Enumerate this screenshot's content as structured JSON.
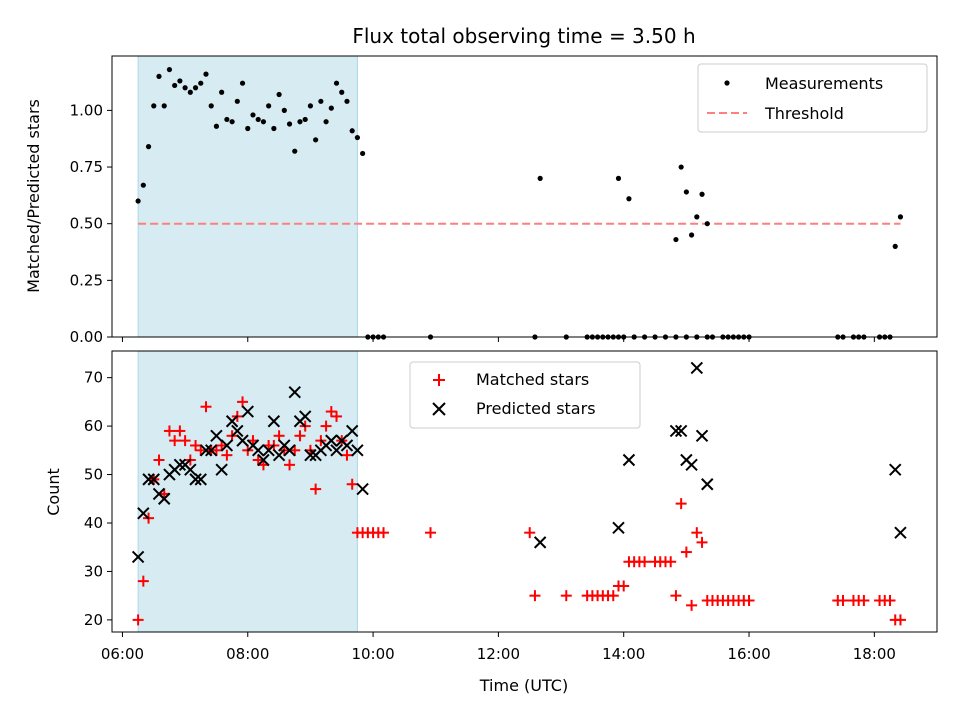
{
  "chart_data": [
    {
      "type": "scatter",
      "title": "Flux total observing time = 3.50 h",
      "xlabel": "",
      "ylabel": "Matched/Predicted stars",
      "xlim": [
        "05:50",
        "19:00"
      ],
      "ylim": [
        0,
        1.24
      ],
      "yticks": [
        "0.00",
        "0.25",
        "0.50",
        "0.75",
        "1.00"
      ],
      "shaded_interval": [
        "06:15",
        "09:45"
      ],
      "threshold": 0.5,
      "legend": {
        "placement": "top-right",
        "entries": [
          "Measurements",
          "Threshold"
        ]
      },
      "series": [
        {
          "name": "Measurements",
          "color": "#000000",
          "points": [
            [
              "06:15",
              0.6
            ],
            [
              "06:20",
              0.67
            ],
            [
              "06:25",
              0.84
            ],
            [
              "06:30",
              1.02
            ],
            [
              "06:35",
              1.15
            ],
            [
              "06:40",
              1.02
            ],
            [
              "06:45",
              1.18
            ],
            [
              "06:50",
              1.11
            ],
            [
              "06:55",
              1.13
            ],
            [
              "07:00",
              1.1
            ],
            [
              "07:05",
              1.08
            ],
            [
              "07:10",
              1.1
            ],
            [
              "07:15",
              1.12
            ],
            [
              "07:20",
              1.16
            ],
            [
              "07:25",
              1.02
            ],
            [
              "07:30",
              0.93
            ],
            [
              "07:35",
              1.08
            ],
            [
              "07:40",
              0.96
            ],
            [
              "07:45",
              0.95
            ],
            [
              "07:50",
              1.04
            ],
            [
              "07:55",
              1.12
            ],
            [
              "08:00",
              0.92
            ],
            [
              "08:05",
              0.98
            ],
            [
              "08:10",
              0.96
            ],
            [
              "08:15",
              0.95
            ],
            [
              "08:20",
              1.02
            ],
            [
              "08:25",
              0.92
            ],
            [
              "08:30",
              1.07
            ],
            [
              "08:35",
              1.0
            ],
            [
              "08:40",
              0.94
            ],
            [
              "08:45",
              0.82
            ],
            [
              "08:50",
              0.95
            ],
            [
              "08:55",
              0.96
            ],
            [
              "09:00",
              1.02
            ],
            [
              "09:05",
              0.87
            ],
            [
              "09:10",
              1.04
            ],
            [
              "09:15",
              0.95
            ],
            [
              "09:20",
              1.01
            ],
            [
              "09:25",
              1.12
            ],
            [
              "09:30",
              1.08
            ],
            [
              "09:35",
              1.04
            ],
            [
              "09:40",
              0.91
            ],
            [
              "09:45",
              0.88
            ],
            [
              "09:50",
              0.81
            ],
            [
              "09:55",
              0
            ],
            [
              "10:00",
              0
            ],
            [
              "10:05",
              0
            ],
            [
              "10:10",
              0
            ],
            [
              "10:55",
              0
            ],
            [
              "12:35",
              0
            ],
            [
              "13:05",
              0
            ],
            [
              "13:25",
              0
            ],
            [
              "13:30",
              0
            ],
            [
              "13:35",
              0
            ],
            [
              "13:40",
              0
            ],
            [
              "13:45",
              0
            ],
            [
              "13:50",
              0
            ],
            [
              "13:55",
              0
            ],
            [
              "14:00",
              0
            ],
            [
              "14:10",
              0
            ],
            [
              "14:20",
              0
            ],
            [
              "14:30",
              0
            ],
            [
              "14:40",
              0
            ],
            [
              "14:50",
              0
            ],
            [
              "15:00",
              0
            ],
            [
              "15:10",
              0
            ],
            [
              "15:20",
              0
            ],
            [
              "15:25",
              0
            ],
            [
              "15:35",
              0
            ],
            [
              "15:40",
              0
            ],
            [
              "15:45",
              0
            ],
            [
              "15:50",
              0
            ],
            [
              "15:55",
              0
            ],
            [
              "16:00",
              0
            ],
            [
              "17:25",
              0
            ],
            [
              "17:30",
              0
            ],
            [
              "17:40",
              0
            ],
            [
              "17:45",
              0
            ],
            [
              "17:50",
              0
            ],
            [
              "18:05",
              0
            ],
            [
              "18:10",
              0
            ],
            [
              "18:15",
              0
            ],
            [
              "12:40",
              0.7
            ],
            [
              "13:55",
              0.7
            ],
            [
              "14:05",
              0.61
            ],
            [
              "14:50",
              0.43
            ],
            [
              "14:55",
              0.75
            ],
            [
              "15:00",
              0.64
            ],
            [
              "15:05",
              0.45
            ],
            [
              "15:10",
              0.53
            ],
            [
              "15:15",
              0.63
            ],
            [
              "15:20",
              0.5
            ],
            [
              "18:20",
              0.4
            ],
            [
              "18:25",
              0.53
            ]
          ]
        }
      ]
    },
    {
      "type": "scatter",
      "title": "",
      "xlabel": "Time (UTC)",
      "ylabel": "Count",
      "xlim": [
        "05:50",
        "19:00"
      ],
      "ylim": [
        17.5,
        75.5
      ],
      "yticks": [
        "20",
        "30",
        "40",
        "50",
        "60",
        "70"
      ],
      "xticks": [
        "06:00",
        "08:00",
        "10:00",
        "12:00",
        "14:00",
        "16:00",
        "18:00"
      ],
      "shaded_interval": [
        "06:15",
        "09:45"
      ],
      "legend": {
        "placement": "top-center",
        "entries": [
          "Matched stars",
          "Predicted stars"
        ]
      },
      "series": [
        {
          "name": "Matched stars",
          "color": "#ff0000",
          "marker": "plus",
          "points": [
            [
              "06:15",
              20
            ],
            [
              "06:20",
              28
            ],
            [
              "06:25",
              41
            ],
            [
              "06:30",
              49
            ],
            [
              "06:35",
              53
            ],
            [
              "06:40",
              46
            ],
            [
              "06:45",
              59
            ],
            [
              "06:50",
              57
            ],
            [
              "06:55",
              59
            ],
            [
              "07:00",
              57
            ],
            [
              "07:05",
              53
            ],
            [
              "07:10",
              56
            ],
            [
              "07:15",
              55
            ],
            [
              "07:20",
              64
            ],
            [
              "07:25",
              55
            ],
            [
              "07:30",
              55
            ],
            [
              "07:35",
              56
            ],
            [
              "07:40",
              54
            ],
            [
              "07:45",
              58
            ],
            [
              "07:50",
              62
            ],
            [
              "07:55",
              65
            ],
            [
              "08:00",
              55
            ],
            [
              "08:05",
              57
            ],
            [
              "08:10",
              53
            ],
            [
              "08:15",
              52
            ],
            [
              "08:20",
              56
            ],
            [
              "08:25",
              56
            ],
            [
              "08:30",
              58
            ],
            [
              "08:35",
              55
            ],
            [
              "08:40",
              52
            ],
            [
              "08:45",
              55
            ],
            [
              "08:50",
              58
            ],
            [
              "08:55",
              60
            ],
            [
              "09:00",
              55
            ],
            [
              "09:05",
              47
            ],
            [
              "09:10",
              57
            ],
            [
              "09:15",
              60
            ],
            [
              "09:20",
              63
            ],
            [
              "09:25",
              62
            ],
            [
              "09:30",
              57
            ],
            [
              "09:35",
              54
            ],
            [
              "09:40",
              48
            ],
            [
              "09:45",
              38
            ],
            [
              "09:50",
              38
            ],
            [
              "09:55",
              38
            ],
            [
              "10:00",
              38
            ],
            [
              "10:05",
              38
            ],
            [
              "10:10",
              38
            ],
            [
              "10:55",
              38
            ],
            [
              "12:30",
              38
            ],
            [
              "12:35",
              25
            ],
            [
              "13:05",
              25
            ],
            [
              "13:25",
              25
            ],
            [
              "13:30",
              25
            ],
            [
              "13:35",
              25
            ],
            [
              "13:40",
              25
            ],
            [
              "13:45",
              25
            ],
            [
              "13:50",
              25
            ],
            [
              "13:55",
              27
            ],
            [
              "14:00",
              27
            ],
            [
              "14:05",
              32
            ],
            [
              "14:10",
              32
            ],
            [
              "14:15",
              32
            ],
            [
              "14:20",
              32
            ],
            [
              "14:30",
              32
            ],
            [
              "14:35",
              32
            ],
            [
              "14:40",
              32
            ],
            [
              "14:45",
              32
            ],
            [
              "14:50",
              25
            ],
            [
              "14:55",
              44
            ],
            [
              "15:00",
              34
            ],
            [
              "15:05",
              23
            ],
            [
              "15:10",
              38
            ],
            [
              "15:15",
              36
            ],
            [
              "15:20",
              24
            ],
            [
              "15:25",
              24
            ],
            [
              "15:30",
              24
            ],
            [
              "15:35",
              24
            ],
            [
              "15:40",
              24
            ],
            [
              "15:45",
              24
            ],
            [
              "15:50",
              24
            ],
            [
              "15:55",
              24
            ],
            [
              "16:00",
              24
            ],
            [
              "17:25",
              24
            ],
            [
              "17:30",
              24
            ],
            [
              "17:40",
              24
            ],
            [
              "17:45",
              24
            ],
            [
              "17:50",
              24
            ],
            [
              "18:05",
              24
            ],
            [
              "18:10",
              24
            ],
            [
              "18:15",
              24
            ],
            [
              "18:20",
              20
            ],
            [
              "18:25",
              20
            ]
          ]
        },
        {
          "name": "Predicted stars",
          "color": "#000000",
          "marker": "x",
          "points": [
            [
              "06:15",
              33
            ],
            [
              "06:20",
              42
            ],
            [
              "06:25",
              49
            ],
            [
              "06:30",
              49
            ],
            [
              "06:35",
              46
            ],
            [
              "06:40",
              45
            ],
            [
              "06:45",
              50
            ],
            [
              "06:50",
              51
            ],
            [
              "06:55",
              52
            ],
            [
              "07:00",
              52
            ],
            [
              "07:05",
              51
            ],
            [
              "07:10",
              49
            ],
            [
              "07:15",
              49
            ],
            [
              "07:20",
              55
            ],
            [
              "07:25",
              55
            ],
            [
              "07:30",
              58
            ],
            [
              "07:35",
              51
            ],
            [
              "07:40",
              56
            ],
            [
              "07:45",
              61
            ],
            [
              "07:50",
              59
            ],
            [
              "07:55",
              57
            ],
            [
              "08:00",
              63
            ],
            [
              "08:05",
              56
            ],
            [
              "08:10",
              55
            ],
            [
              "08:15",
              53
            ],
            [
              "08:20",
              55
            ],
            [
              "08:25",
              61
            ],
            [
              "08:30",
              54
            ],
            [
              "08:35",
              56
            ],
            [
              "08:40",
              55
            ],
            [
              "08:45",
              67
            ],
            [
              "08:50",
              61
            ],
            [
              "08:55",
              62
            ],
            [
              "09:00",
              54
            ],
            [
              "09:05",
              54
            ],
            [
              "09:10",
              55
            ],
            [
              "09:15",
              56
            ],
            [
              "09:20",
              57
            ],
            [
              "09:25",
              55
            ],
            [
              "09:30",
              57
            ],
            [
              "09:35",
              56
            ],
            [
              "09:40",
              59
            ],
            [
              "09:45",
              55
            ],
            [
              "09:50",
              47
            ],
            [
              "12:40",
              36
            ],
            [
              "13:55",
              39
            ],
            [
              "14:05",
              53
            ],
            [
              "14:50",
              59
            ],
            [
              "14:55",
              59
            ],
            [
              "15:00",
              53
            ],
            [
              "15:05",
              52
            ],
            [
              "15:10",
              72
            ],
            [
              "15:15",
              58
            ],
            [
              "15:20",
              48
            ],
            [
              "18:20",
              51
            ],
            [
              "18:25",
              38
            ]
          ]
        }
      ]
    }
  ]
}
